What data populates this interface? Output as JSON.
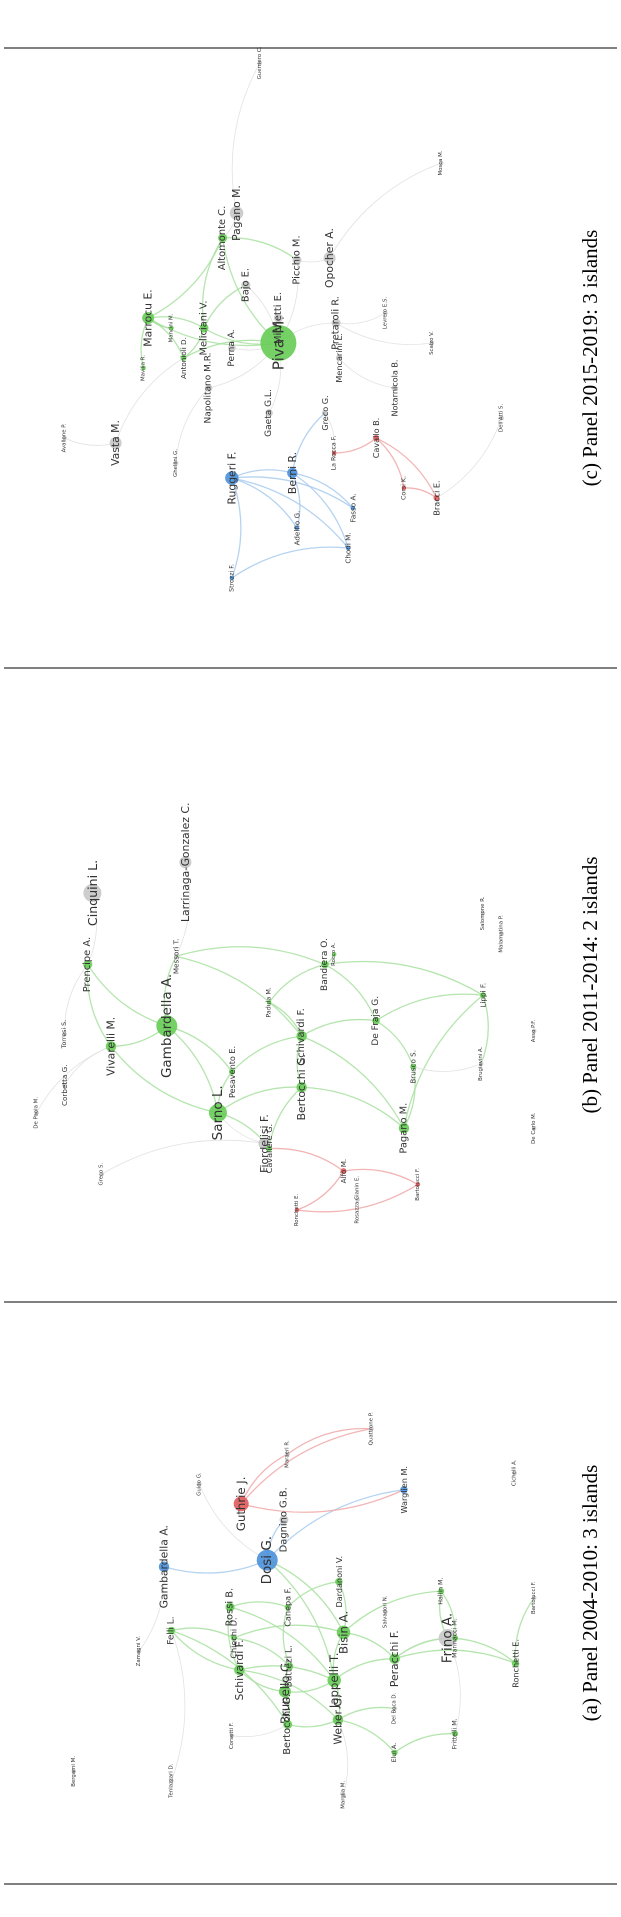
{
  "colors": {
    "green": "#66cc55",
    "blue": "#4a90d9",
    "red": "#e05a5a",
    "gray": "#c8c8c8",
    "edge_green": "#a8e0a0",
    "edge_blue": "#a8cbee",
    "edge_red": "#f0a8a8",
    "edge_gray": "#dddddd"
  },
  "panels": [
    {
      "caption": "(a) Panel 2004-2010: 3 islands",
      "nodes": [
        {
          "id": "dosi",
          "label": "Dosi G.",
          "c": "blue",
          "s": 14,
          "f": 15
        },
        {
          "id": "guthrie",
          "label": "Guthrie J.",
          "c": "red",
          "s": 10,
          "f": 13
        },
        {
          "id": "frino",
          "label": "Frino A.",
          "c": "gray",
          "s": 12,
          "f": 15
        },
        {
          "id": "gambardella",
          "label": "Gambardella A.",
          "c": "blue",
          "s": 7,
          "f": 12
        },
        {
          "id": "dagnino",
          "label": "Dagnino G.B.",
          "c": "gray",
          "s": 6,
          "f": 11
        },
        {
          "id": "jappelli",
          "label": "Jappelli T.",
          "c": "green",
          "s": 9,
          "f": 13
        },
        {
          "id": "brunello",
          "label": "Brunello G.",
          "c": "green",
          "s": 8,
          "f": 13
        },
        {
          "id": "bisin",
          "label": "Bisin A.",
          "c": "green",
          "s": 9,
          "f": 13
        },
        {
          "id": "schivardi",
          "label": "Schivardi F.",
          "c": "green",
          "s": 7,
          "f": 12
        },
        {
          "id": "weber",
          "label": "Weber G.",
          "c": "green",
          "s": 7,
          "f": 12
        },
        {
          "id": "peracchi",
          "label": "Peracchi F.",
          "c": "green",
          "s": 7,
          "f": 12
        },
        {
          "id": "rossi",
          "label": "Rossi B.",
          "c": "green",
          "s": 6,
          "f": 11
        },
        {
          "id": "bertocchi",
          "label": "Bertocchi G.",
          "c": "green",
          "s": 6,
          "f": 11
        },
        {
          "id": "felli",
          "label": "Felli L.",
          "c": "green",
          "s": 5,
          "f": 10
        },
        {
          "id": "battezi",
          "label": "Battezi L.",
          "c": "green",
          "s": 5,
          "f": 10
        },
        {
          "id": "canepa",
          "label": "Canepa F.",
          "c": "green",
          "s": 4,
          "f": 9
        },
        {
          "id": "chiechi",
          "label": "Chiechi D.",
          "c": "green",
          "s": 4,
          "f": 9
        },
        {
          "id": "dardanoni",
          "label": "Dardanoni V.",
          "c": "green",
          "s": 5,
          "f": 9
        },
        {
          "id": "warglien",
          "label": "Warglien M.",
          "c": "blue",
          "s": 5,
          "f": 9
        },
        {
          "id": "ronchetti",
          "label": "Ronchetti E.",
          "c": "green",
          "s": 5,
          "f": 9
        },
        {
          "id": "manasco",
          "label": "Marinacci M.",
          "c": "green",
          "s": 4,
          "f": 7
        },
        {
          "id": "hallin",
          "label": "Hallin M.",
          "c": "green",
          "s": 4,
          "f": 7
        },
        {
          "id": "bartolucci",
          "label": "Bartolucci F.",
          "c": "gray",
          "s": 3,
          "f": 6
        },
        {
          "id": "salvadori",
          "label": "Salvadori N.",
          "c": "gray",
          "s": 3,
          "f": 6
        },
        {
          "id": "delboca",
          "label": "Del Boca D.",
          "c": "gray",
          "s": 3,
          "f": 6
        },
        {
          "id": "elul",
          "label": "Elul A.",
          "c": "green",
          "s": 4,
          "f": 7
        },
        {
          "id": "frittelli",
          "label": "Frittelli M.",
          "c": "green",
          "s": 4,
          "f": 7
        },
        {
          "id": "marglia",
          "label": "Marglia M.",
          "c": "gray",
          "s": 3,
          "f": 6
        },
        {
          "id": "corsetti",
          "label": "Corsetti F.",
          "c": "gray",
          "s": 3,
          "f": 6
        },
        {
          "id": "tenlazzari",
          "label": "Tenlazzari D.",
          "c": "gray",
          "s": 3,
          "f": 6
        },
        {
          "id": "bergami",
          "label": "Bergami M.",
          "c": "gray",
          "s": 3,
          "f": 6
        },
        {
          "id": "zamagni",
          "label": "Zamagni V.",
          "c": "gray",
          "s": 3,
          "f": 6
        },
        {
          "id": "guido",
          "label": "Guido G.",
          "c": "gray",
          "s": 3,
          "f": 6
        },
        {
          "id": "maraeri",
          "label": "Maraeri R.",
          "c": "gray",
          "s": 3,
          "f": 6
        },
        {
          "id": "quattrone",
          "label": "Quattrone P.",
          "c": "gray",
          "s": 3,
          "f": 6
        },
        {
          "id": "cichelli",
          "label": "Cichelli A.",
          "c": "gray",
          "s": 3,
          "f": 6
        }
      ]
    },
    {
      "caption": "(b) Panel 2011-2014: 2 islands",
      "nodes": [
        {
          "id": "gambardella",
          "label": "Gambardella A.",
          "c": "green",
          "s": 14,
          "f": 15
        },
        {
          "id": "sarno",
          "label": "Sarno L.",
          "c": "green",
          "s": 12,
          "f": 15
        },
        {
          "id": "cinquini",
          "label": "Cinquini L.",
          "c": "gray",
          "s": 12,
          "f": 14
        },
        {
          "id": "larrinaga",
          "label": "Larrinaga-Gonzalez C.",
          "c": "gray",
          "s": 8,
          "f": 12
        },
        {
          "id": "fiordelisi",
          "label": "Fiordelisi F.",
          "c": "gray",
          "s": 8,
          "f": 12
        },
        {
          "id": "vivarelli",
          "label": "Vivarelli M.",
          "c": "green",
          "s": 7,
          "f": 12
        },
        {
          "id": "bertocchi",
          "label": "Bertocchi G.",
          "c": "green",
          "s": 7,
          "f": 12
        },
        {
          "id": "schivardi",
          "label": "Schivardi F.",
          "c": "green",
          "s": 7,
          "f": 11
        },
        {
          "id": "pagano",
          "label": "Pagano M.",
          "c": "green",
          "s": 7,
          "f": 11
        },
        {
          "id": "principe",
          "label": "Prencipe A.",
          "c": "green",
          "s": 6,
          "f": 11
        },
        {
          "id": "bandiera",
          "label": "Bandiera O.",
          "c": "green",
          "s": 5,
          "f": 10
        },
        {
          "id": "defraja",
          "label": "De Fraja G.",
          "c": "green",
          "s": 5,
          "f": 10
        },
        {
          "id": "pesavento",
          "label": "Pesavento E.",
          "c": "green",
          "s": 4,
          "f": 9
        },
        {
          "id": "cavalieri",
          "label": "Cavaliere G.",
          "c": "green",
          "s": 4,
          "f": 9
        },
        {
          "id": "brusco",
          "label": "Brusco S.",
          "c": "green",
          "s": 4,
          "f": 8
        },
        {
          "id": "lippi",
          "label": "Lippi F.",
          "c": "green",
          "s": 4,
          "f": 8
        },
        {
          "id": "padula",
          "label": "Padula M.",
          "c": "green",
          "s": 3,
          "f": 7
        },
        {
          "id": "alfo",
          "label": "Alfò M.",
          "c": "red",
          "s": 4,
          "f": 8
        },
        {
          "id": "bartolucci",
          "label": "Bartolucci F.",
          "c": "red",
          "s": 3,
          "f": 6
        },
        {
          "id": "roncheti",
          "label": "Ronchetti E.",
          "c": "red",
          "s": 3,
          "f": 6
        },
        {
          "id": "rocco",
          "label": "Rocco A.",
          "c": "green",
          "s": 3,
          "f": 6
        },
        {
          "id": "torresi",
          "label": "Torresi S.",
          "c": "gray",
          "s": 3,
          "f": 7
        },
        {
          "id": "corbetta",
          "label": "Corbetta G.",
          "c": "gray",
          "s": 3,
          "f": 8
        },
        {
          "id": "depaola",
          "label": "De Paola M.",
          "c": "gray",
          "s": 3,
          "f": 6
        },
        {
          "id": "greco",
          "label": "Greco S.",
          "c": "gray",
          "s": 3,
          "f": 6
        },
        {
          "id": "brugiavini",
          "label": "Brugiavini A.",
          "c": "gray",
          "s": 3,
          "f": 6
        },
        {
          "id": "salomone",
          "label": "Salomone R.",
          "c": "gray",
          "s": 3,
          "f": 6
        },
        {
          "id": "malamamp",
          "label": "Malamatina P.",
          "c": "gray",
          "s": 3,
          "f": 6
        },
        {
          "id": "assp",
          "label": "Asso P.F.",
          "c": "gray",
          "s": 3,
          "f": 6
        },
        {
          "id": "decarlo",
          "label": "De Carlo M.",
          "c": "gray",
          "s": 3,
          "f": 6
        },
        {
          "id": "rosazza",
          "label": "Rosazza Gianin E.",
          "c": "gray",
          "s": 3,
          "f": 6
        },
        {
          "id": "messori",
          "label": "Messori T.",
          "c": "gray",
          "s": 3,
          "f": 8
        }
      ]
    },
    {
      "caption": "(c) Panel 2015-2019: 3 islands",
      "nodes": [
        {
          "id": "piva",
          "label": "Piva M.",
          "c": "green",
          "s": 24,
          "f": 17
        },
        {
          "id": "ruggeri",
          "label": "Ruggeri F.",
          "c": "blue",
          "s": 9,
          "f": 12
        },
        {
          "id": "berni",
          "label": "Berni R.",
          "c": "blue",
          "s": 7,
          "f": 12
        },
        {
          "id": "marrocu",
          "label": "Marrocu E.",
          "c": "green",
          "s": 8,
          "f": 12
        },
        {
          "id": "vasta",
          "label": "Vasta M.",
          "c": "gray",
          "s": 8,
          "f": 12
        },
        {
          "id": "pagano",
          "label": "Pagano M.",
          "c": "gray",
          "s": 9,
          "f": 12
        },
        {
          "id": "opocher",
          "label": "Opocher A.",
          "c": "gray",
          "s": 8,
          "f": 12
        },
        {
          "id": "meliciani",
          "label": "Meliciani V.",
          "c": "green",
          "s": 6,
          "f": 11
        },
        {
          "id": "altomonte",
          "label": "Altomonte C.",
          "c": "green",
          "s": 6,
          "f": 11
        },
        {
          "id": "bajo",
          "label": "Bajo E.",
          "c": "gray",
          "s": 6,
          "f": 11
        },
        {
          "id": "picchio",
          "label": "Picchio M.",
          "c": "gray",
          "s": 6,
          "f": 11
        },
        {
          "id": "michetti",
          "label": "Michetti E.",
          "c": "gray",
          "s": 6,
          "f": 11
        },
        {
          "id": "pretaroli",
          "label": "Pretaroli R.",
          "c": "gray",
          "s": 6,
          "f": 11
        },
        {
          "id": "perna",
          "label": "Perna A.",
          "c": "gray",
          "s": 5,
          "f": 10
        },
        {
          "id": "napolitano",
          "label": "Napolitano M.R.",
          "c": "gray",
          "s": 5,
          "f": 10
        },
        {
          "id": "gaeta",
          "label": "Gaeta G.L.",
          "c": "gray",
          "s": 5,
          "f": 10
        },
        {
          "id": "greco",
          "label": "Greco G.",
          "c": "gray",
          "s": 4,
          "f": 9
        },
        {
          "id": "mencarini",
          "label": "Mencarini L.",
          "c": "gray",
          "s": 4,
          "f": 9
        },
        {
          "id": "notarnicola",
          "label": "Notarnicola B.",
          "c": "gray",
          "s": 4,
          "f": 9
        },
        {
          "id": "cavallo",
          "label": "Cavallo B.",
          "c": "red",
          "s": 4,
          "f": 9
        },
        {
          "id": "bracci",
          "label": "Bracci E.",
          "c": "red",
          "s": 4,
          "f": 9
        },
        {
          "id": "corsi",
          "label": "Corsi K.",
          "c": "red",
          "s": 3,
          "f": 7
        },
        {
          "id": "larocca",
          "label": "La Rocca F.",
          "c": "red",
          "s": 3,
          "f": 7
        },
        {
          "id": "fasso",
          "label": "Fasso A.",
          "c": "blue",
          "s": 3,
          "f": 8
        },
        {
          "id": "choch",
          "label": "Chodi M.",
          "c": "blue",
          "s": 3,
          "f": 8
        },
        {
          "id": "adelfio",
          "label": "Adelfio G.",
          "c": "blue",
          "s": 3,
          "f": 8
        },
        {
          "id": "strozzi",
          "label": "Strozzi F.",
          "c": "blue",
          "s": 3,
          "f": 7
        },
        {
          "id": "antonioli",
          "label": "Antonioli D.",
          "c": "green",
          "s": 4,
          "f": 8
        },
        {
          "id": "mavilia",
          "label": "Mavilia R.",
          "c": "green",
          "s": 3,
          "f": 6
        },
        {
          "id": "mancini",
          "label": "Mancini M.",
          "c": "green",
          "s": 3,
          "f": 6
        },
        {
          "id": "ghellini",
          "label": "Ghellini G.",
          "c": "gray",
          "s": 3,
          "f": 6
        },
        {
          "id": "avallone",
          "label": "Avallone P.",
          "c": "gray",
          "s": 3,
          "f": 6
        },
        {
          "id": "guerrieri",
          "label": "Guerriero C.",
          "c": "gray",
          "s": 3,
          "f": 6
        },
        {
          "id": "mosca",
          "label": "Mosca M.",
          "c": "gray",
          "s": 3,
          "f": 6
        },
        {
          "id": "levrero",
          "label": "Levrero E.S.",
          "c": "gray",
          "s": 3,
          "f": 6
        },
        {
          "id": "scalzo",
          "label": "Scalzo V.",
          "c": "gray",
          "s": 3,
          "f": 6
        },
        {
          "id": "dellatti",
          "label": "Dell'Atti S.",
          "c": "gray",
          "s": 3,
          "f": 6
        }
      ]
    }
  ]
}
